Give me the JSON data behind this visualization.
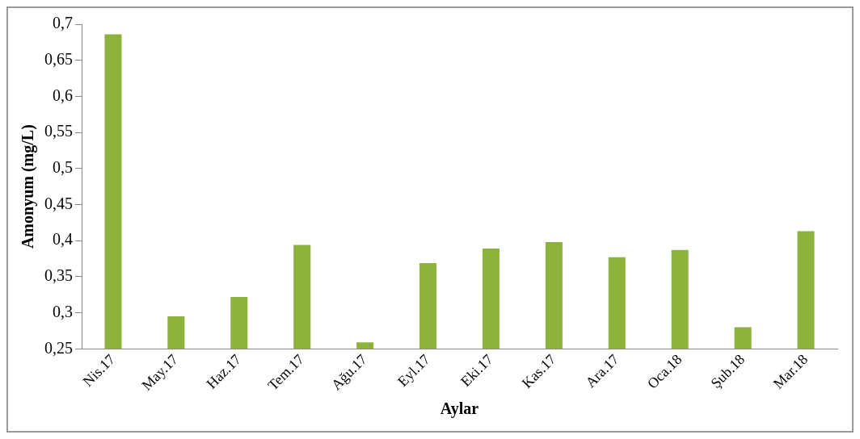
{
  "chart_data": {
    "type": "bar",
    "xlabel": "Aylar",
    "ylabel": "Amonyum (mg/L)",
    "categories": [
      "Nis.17",
      "May.17",
      "Haz.17",
      "Tem.17",
      "Ağu.17",
      "Eyl.17",
      "Eki.17",
      "Kas.17",
      "Ara.17",
      "Oca.18",
      "Şub.18",
      "Mar.18"
    ],
    "values": [
      0.686,
      0.295,
      0.322,
      0.394,
      0.259,
      0.369,
      0.389,
      0.398,
      0.377,
      0.387,
      0.28,
      0.413
    ],
    "color": "#8db33c",
    "ylim": [
      0.25,
      0.7
    ],
    "yticks": [
      {
        "value": 0.25,
        "label": "0,25"
      },
      {
        "value": 0.3,
        "label": "0,3"
      },
      {
        "value": 0.35,
        "label": "0,35"
      },
      {
        "value": 0.4,
        "label": "0,4"
      },
      {
        "value": 0.45,
        "label": "0,45"
      },
      {
        "value": 0.5,
        "label": "0,5"
      },
      {
        "value": 0.55,
        "label": "0,55"
      },
      {
        "value": 0.6,
        "label": "0,6"
      },
      {
        "value": 0.65,
        "label": "0,65"
      },
      {
        "value": 0.7,
        "label": "0,7"
      }
    ],
    "grid": false,
    "legend": false
  }
}
